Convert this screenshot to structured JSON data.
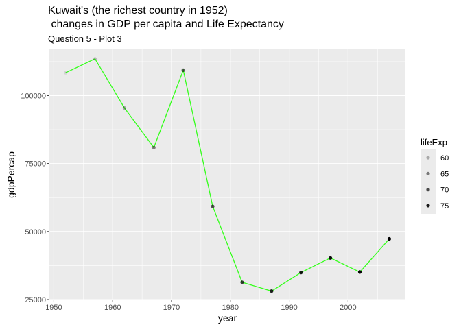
{
  "chart_data": {
    "type": "line",
    "title_line1": "Kuwait's (the richest country in 1952)",
    "title_line2": " changes in GDP per capita and Life Expectancy",
    "subtitle": "Question 5 - Plot 3",
    "xlabel": "year",
    "ylabel": "gdpPercap",
    "xlim": [
      1949.25,
      2009.75
    ],
    "ylim": [
      24750,
      117000
    ],
    "x_ticks": [
      1950,
      1960,
      1970,
      1980,
      1990,
      2000
    ],
    "y_ticks": [
      25000,
      50000,
      75000,
      100000
    ],
    "y_tick_labels": [
      "25000",
      "50000",
      "75000",
      "100000"
    ],
    "grid": true,
    "line_color": "#33ff1a",
    "panel_background": "#ebebeb",
    "points": [
      {
        "year": 1952,
        "gdpPercap": 108382,
        "lifeExp": 55.6
      },
      {
        "year": 1957,
        "gdpPercap": 113523,
        "lifeExp": 58.0
      },
      {
        "year": 1962,
        "gdpPercap": 95458,
        "lifeExp": 60.5
      },
      {
        "year": 1967,
        "gdpPercap": 80895,
        "lifeExp": 64.6
      },
      {
        "year": 1972,
        "gdpPercap": 109348,
        "lifeExp": 67.7
      },
      {
        "year": 1977,
        "gdpPercap": 59265,
        "lifeExp": 69.3
      },
      {
        "year": 1982,
        "gdpPercap": 31354,
        "lifeExp": 71.3
      },
      {
        "year": 1987,
        "gdpPercap": 28118,
        "lifeExp": 74.2
      },
      {
        "year": 1992,
        "gdpPercap": 34933,
        "lifeExp": 75.2
      },
      {
        "year": 1997,
        "gdpPercap": 40301,
        "lifeExp": 76.2
      },
      {
        "year": 2002,
        "gdpPercap": 35110,
        "lifeExp": 76.9
      },
      {
        "year": 2007,
        "gdpPercap": 47307,
        "lifeExp": 77.6
      }
    ],
    "legend": {
      "title": "lifeExp",
      "position": "right",
      "entries": [
        {
          "label": "60",
          "value": 60
        },
        {
          "label": "65",
          "value": 65
        },
        {
          "label": "70",
          "value": 70
        },
        {
          "label": "75",
          "value": 75
        }
      ]
    }
  }
}
